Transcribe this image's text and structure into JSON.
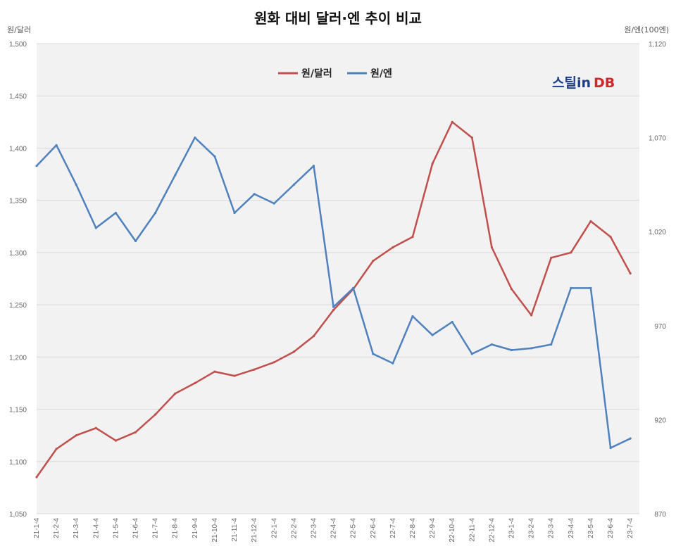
{
  "chart_data": {
    "type": "line",
    "title": "원화 대비 달러·엔 추이 비교",
    "y_left_label": "원/달러",
    "y_right_label": "원/엔(100엔)",
    "y_left_lim": [
      1050,
      1500
    ],
    "y_right_lim": [
      870,
      1120
    ],
    "y_left_ticks": [
      "1,050",
      "1,100",
      "1,150",
      "1,200",
      "1,250",
      "1,300",
      "1,350",
      "1,400",
      "1,450",
      "1,500"
    ],
    "y_right_ticks": [
      "870",
      "920",
      "970",
      "1,020",
      "1,070",
      "1,120"
    ],
    "x_ticks": [
      "21-1-4",
      "21-2-4",
      "21-3-4",
      "21-4-4",
      "21-5-4",
      "21-6-4",
      "21-7-4",
      "21-8-4",
      "21-9-4",
      "21-10-4",
      "21-11-4",
      "21-12-4",
      "22-1-4",
      "22-2-4",
      "22-3-4",
      "22-4-4",
      "22-5-4",
      "22-6-4",
      "22-7-4",
      "22-8-4",
      "22-9-4",
      "22-10-4",
      "22-11-4",
      "22-12-4",
      "23-1-4",
      "23-2-4",
      "23-3-4",
      "23-4-4",
      "23-5-4",
      "23-6-4",
      "23-7-4"
    ],
    "grid": "horizontal",
    "legend_position": "top-center",
    "series": [
      {
        "name": "원/달러",
        "axis": "left",
        "color": "#c0504d",
        "x": [
          "21-1-4",
          "21-2-4",
          "21-3-4",
          "21-4-4",
          "21-5-4",
          "21-6-4",
          "21-7-4",
          "21-8-4",
          "21-9-4",
          "21-10-4",
          "21-11-4",
          "21-12-4",
          "22-1-4",
          "22-2-4",
          "22-3-4",
          "22-4-4",
          "22-5-4",
          "22-6-4",
          "22-7-4",
          "22-8-4",
          "22-9-4",
          "22-10-4",
          "22-11-4",
          "22-12-4",
          "23-1-4",
          "23-2-4",
          "23-3-4",
          "23-4-4",
          "23-5-4",
          "23-6-4",
          "23-7-4"
        ],
        "values": [
          1085,
          1112,
          1125,
          1132,
          1120,
          1128,
          1145,
          1165,
          1175,
          1186,
          1182,
          1188,
          1195,
          1205,
          1220,
          1245,
          1265,
          1292,
          1305,
          1315,
          1385,
          1425,
          1410,
          1305,
          1265,
          1240,
          1295,
          1300,
          1330,
          1315,
          1280
        ]
      },
      {
        "name": "원/엔",
        "axis": "right",
        "color": "#4f81bd",
        "x": [
          "21-1-4",
          "21-2-4",
          "21-3-4",
          "21-4-4",
          "21-5-4",
          "21-6-4",
          "21-7-4",
          "21-8-4",
          "21-9-4",
          "21-10-4",
          "21-11-4",
          "21-12-4",
          "22-1-4",
          "22-2-4",
          "22-3-4",
          "22-4-4",
          "22-5-4",
          "22-6-4",
          "22-7-4",
          "22-8-4",
          "22-9-4",
          "22-10-4",
          "22-11-4",
          "22-12-4",
          "23-1-4",
          "23-2-4",
          "23-3-4",
          "23-4-4",
          "23-5-4",
          "23-6-4",
          "23-7-4"
        ],
        "values": [
          1055,
          1066,
          1045,
          1022,
          1030,
          1015,
          1030,
          1050,
          1070,
          1060,
          1030,
          1040,
          1035,
          1045,
          1055,
          980,
          990,
          955,
          950,
          975,
          965,
          972,
          955,
          960,
          957,
          958,
          960,
          990,
          990,
          905,
          910
        ]
      }
    ]
  },
  "logo": {
    "text_a": "스틸in",
    "text_b": "DB"
  }
}
